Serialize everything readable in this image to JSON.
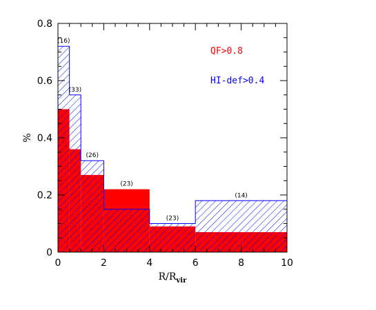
{
  "chart_data": {
    "type": "bar",
    "title": "",
    "xlabel": "R/R",
    "xlabel_sub": "vir",
    "ylabel": "%",
    "xlim": [
      0,
      10
    ],
    "ylim": [
      0,
      0.8
    ],
    "xticks": [
      0,
      2,
      4,
      6,
      8,
      10
    ],
    "yticks": [
      0,
      0.2,
      0.4,
      0.6,
      0.8
    ],
    "xtick_labels": [
      "0",
      "2",
      "4",
      "6",
      "8",
      "10"
    ],
    "ytick_labels": [
      "0",
      "0.2",
      "0.4",
      "0.6",
      "0.8"
    ],
    "bin_edges": [
      0,
      0.5,
      1,
      2,
      4,
      6,
      10
    ],
    "series": [
      {
        "name": "QF>0.8",
        "color": "#ff0000",
        "style": "filled",
        "values": [
          0.5,
          0.36,
          0.27,
          0.22,
          0.09,
          0.07
        ]
      },
      {
        "name": "HI-def>0.4",
        "color": "#0000ff",
        "style": "hatched",
        "values": [
          0.72,
          0.55,
          0.32,
          0.15,
          0.1,
          0.18
        ]
      }
    ],
    "annotations": [
      {
        "x": 0.25,
        "y": 0.72,
        "text": "(16)"
      },
      {
        "x": 0.75,
        "y": 0.55,
        "text": "(33)"
      },
      {
        "x": 1.5,
        "y": 0.32,
        "text": "(26)"
      },
      {
        "x": 3.0,
        "y": 0.22,
        "text": "(23)"
      },
      {
        "x": 5.0,
        "y": 0.1,
        "text": "(23)"
      },
      {
        "x": 8.0,
        "y": 0.18,
        "text": "(14)"
      }
    ],
    "legend_placement": "top-right",
    "grid": false
  }
}
